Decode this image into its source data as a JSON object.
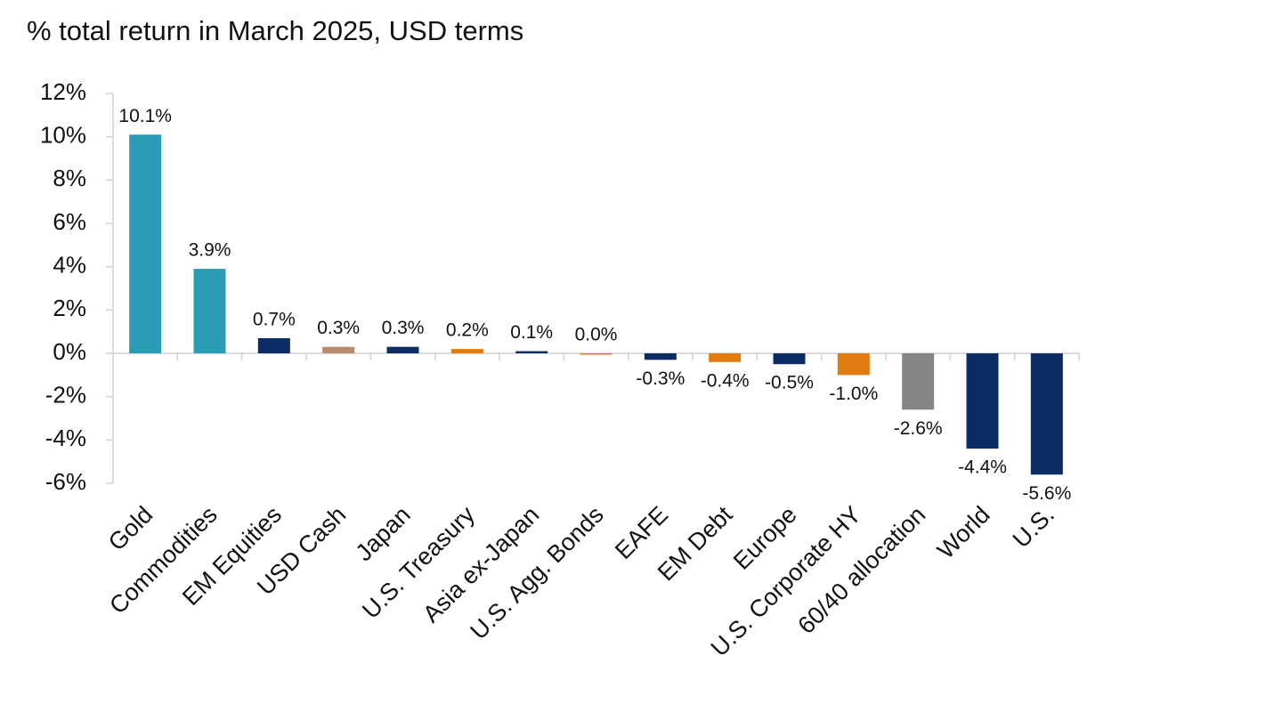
{
  "chart_data": {
    "type": "bar",
    "title": "% total return in March 2025, USD terms",
    "categories": [
      "Gold",
      "Commodities",
      "EM Equities",
      "USD Cash",
      "Japan",
      "U.S. Treasury",
      "Asia ex-Japan",
      "U.S. Agg. Bonds",
      "EAFE",
      "EM Debt",
      "Europe",
      "U.S. Corporate HY",
      "60/40 allocation",
      "World",
      "U.S."
    ],
    "values": [
      10.1,
      3.9,
      0.7,
      0.3,
      0.3,
      0.2,
      0.1,
      0.0,
      -0.3,
      -0.4,
      -0.5,
      -1.0,
      -2.6,
      -4.4,
      -5.6
    ],
    "value_labels": [
      "10.1%",
      "3.9%",
      "0.7%",
      "0.3%",
      "0.3%",
      "0.2%",
      "0.1%",
      "0.0%",
      "-0.3%",
      "-0.4%",
      "-0.5%",
      "-1.0%",
      "-2.6%",
      "-4.4%",
      "-5.6%"
    ],
    "colors": [
      "#2a9cb5",
      "#2a9cb5",
      "#0b2d63",
      "#b78b6b",
      "#0b2d63",
      "#e07b10",
      "#0b2d63",
      "#e07b10",
      "#0b2d63",
      "#e07b10",
      "#0b2d63",
      "#e07b10",
      "#858585",
      "#0b2d63",
      "#0b2d63"
    ],
    "ylim": [
      -6,
      12
    ],
    "yticks": [
      {
        "value": -6,
        "label": "-6%"
      },
      {
        "value": -4,
        "label": "-4%"
      },
      {
        "value": -2,
        "label": "-2%"
      },
      {
        "value": 0,
        "label": "0%"
      },
      {
        "value": 2,
        "label": "2%"
      },
      {
        "value": 4,
        "label": "4%"
      },
      {
        "value": 6,
        "label": "6%"
      },
      {
        "value": 8,
        "label": "8%"
      },
      {
        "value": 10,
        "label": "10%"
      },
      {
        "value": 12,
        "label": "12%"
      }
    ]
  }
}
